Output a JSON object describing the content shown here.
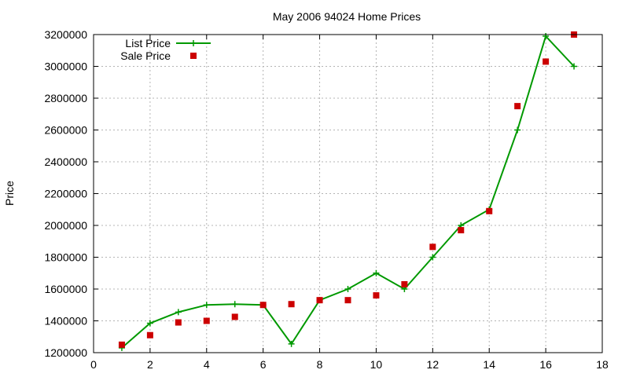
{
  "chart_data": {
    "type": "line",
    "title": "May 2006 94024 Home Prices",
    "xlabel": "",
    "ylabel": "Price",
    "xlim": [
      0,
      18
    ],
    "ylim": [
      1200000,
      3200000
    ],
    "xticks": [
      0,
      2,
      4,
      6,
      8,
      10,
      12,
      14,
      16,
      18
    ],
    "yticks": [
      1200000,
      1400000,
      1600000,
      1800000,
      2000000,
      2200000,
      2400000,
      2600000,
      2800000,
      3000000,
      3200000
    ],
    "grid": true,
    "legend_position": "top-left",
    "series": [
      {
        "name": "List Price",
        "style": "line-cross",
        "color": "#009900",
        "x": [
          1,
          2,
          3,
          4,
          5,
          6,
          7,
          8,
          9,
          10,
          11,
          12,
          13,
          14,
          15,
          16,
          17
        ],
        "values": [
          1230000,
          1385000,
          1455000,
          1500000,
          1505000,
          1500000,
          1255000,
          1530000,
          1600000,
          1700000,
          1600000,
          1800000,
          2000000,
          2100000,
          2600000,
          3190000,
          3000000
        ]
      },
      {
        "name": "Sale Price",
        "style": "square-points",
        "color": "#cc0000",
        "x": [
          1,
          2,
          3,
          4,
          5,
          6,
          7,
          8,
          9,
          10,
          11,
          12,
          13,
          14,
          15,
          16,
          17
        ],
        "values": [
          1250000,
          1310000,
          1390000,
          1400000,
          1425000,
          1500000,
          1505000,
          1530000,
          1530000,
          1560000,
          1630000,
          1865000,
          1970000,
          2090000,
          2750000,
          3030000,
          3200000
        ]
      }
    ]
  }
}
